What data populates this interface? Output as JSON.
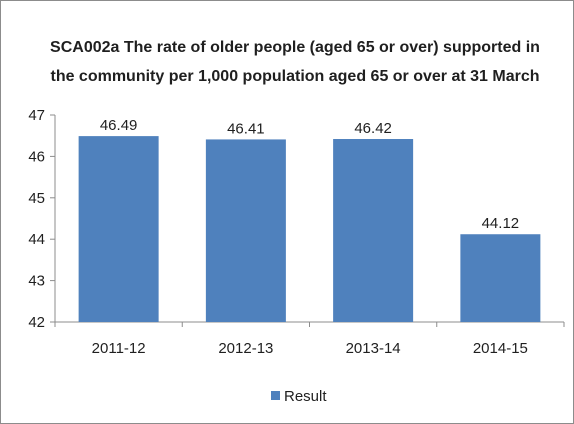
{
  "chart_data": {
    "type": "bar",
    "title_lines": [
      "SCA002a The rate of older people (aged 65 or over) supported in",
      "the community per 1,000 population aged 65 or over at 31 March"
    ],
    "categories": [
      "2011-12",
      "2012-13",
      "2013-14",
      "2014-15"
    ],
    "series": [
      {
        "name": "Result",
        "values": [
          46.49,
          46.41,
          46.42,
          44.12
        ],
        "color": "#4f81bd"
      }
    ],
    "data_labels": [
      "46.49",
      "46.41",
      "46.42",
      "44.12"
    ],
    "ylim": [
      42,
      47
    ],
    "yticks": [
      42,
      43,
      44,
      45,
      46,
      47
    ],
    "xlabel": "",
    "ylabel": "",
    "grid": false,
    "legend": "bottom"
  }
}
